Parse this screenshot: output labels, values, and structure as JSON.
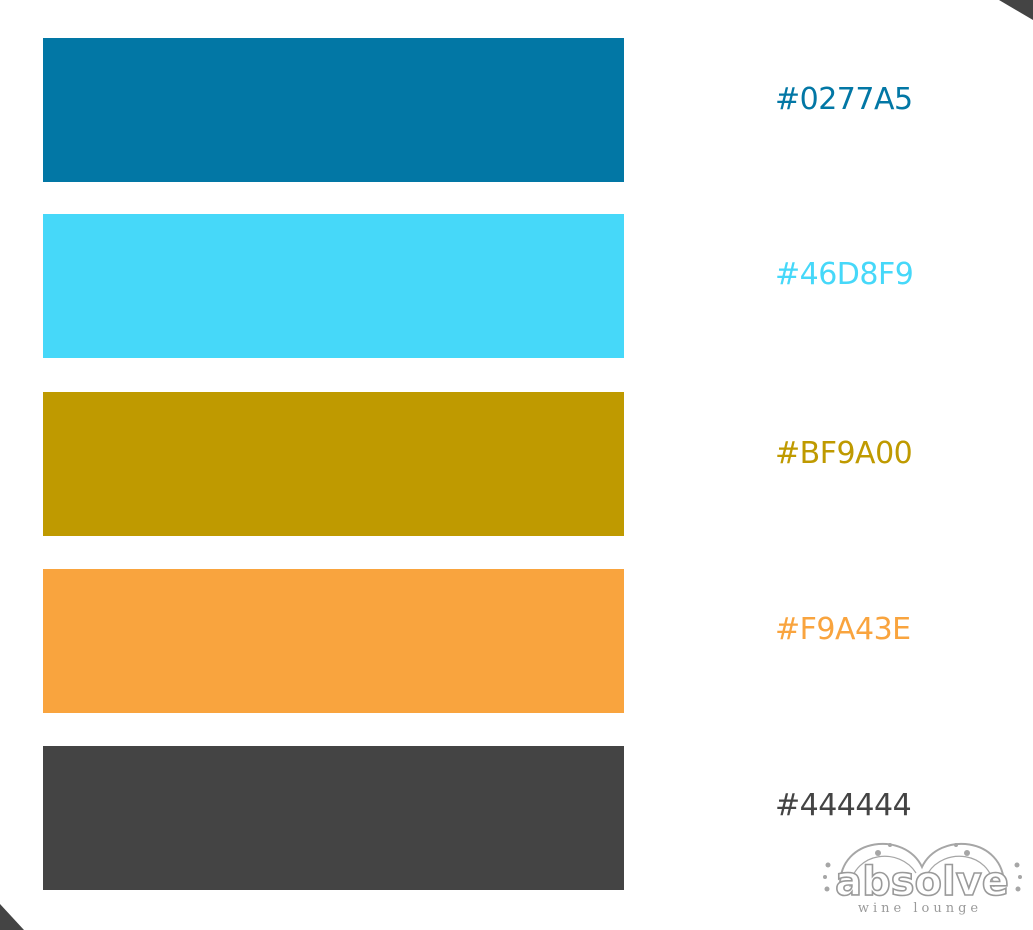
{
  "palette": [
    {
      "hex": "#0277A5",
      "label": "#0277A5"
    },
    {
      "hex": "#46D8F9",
      "label": "#46D8F9"
    },
    {
      "hex": "#BF9A00",
      "label": "#BF9A00"
    },
    {
      "hex": "#F9A43E",
      "label": "#F9A43E"
    },
    {
      "hex": "#444444",
      "label": "#444444"
    }
  ],
  "logo": {
    "name": "absolve",
    "tagline": "wine lounge",
    "color": "#9a9a9a"
  },
  "corner_color": "#444444"
}
